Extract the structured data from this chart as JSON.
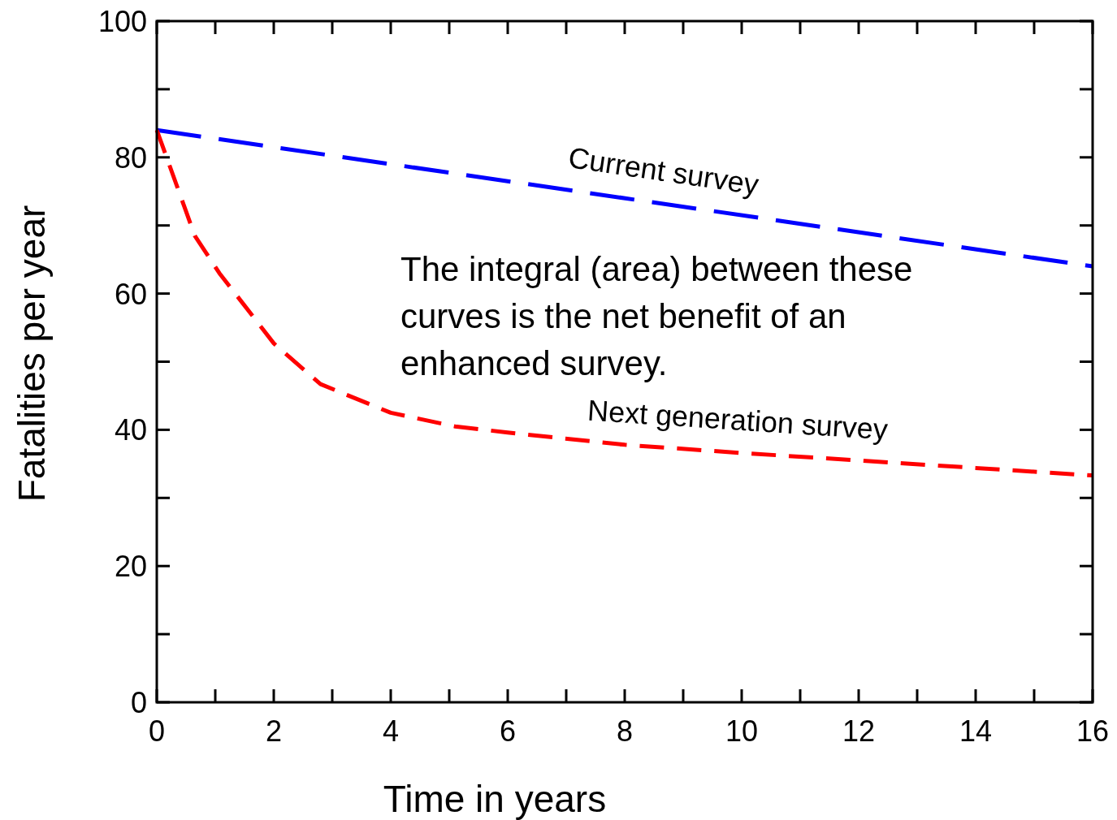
{
  "chart_data": {
    "type": "line",
    "xlabel": "Time in years",
    "ylabel": "Fatalities per year",
    "xlim": [
      0,
      16
    ],
    "ylim": [
      0,
      100
    ],
    "xticks": [
      0,
      {
        "value": 1,
        "label": null
      },
      2,
      {
        "value": 3,
        "label": null
      },
      4,
      {
        "value": 5,
        "label": null
      },
      6,
      {
        "value": 7,
        "label": null
      },
      8,
      {
        "value": 9,
        "label": null
      },
      10,
      {
        "value": 11,
        "label": null
      },
      12,
      {
        "value": 13,
        "label": null
      },
      14,
      {
        "value": 15,
        "label": null
      },
      16
    ],
    "yticks": [
      0,
      {
        "value": 10,
        "label": null
      },
      20,
      {
        "value": 30,
        "label": null
      },
      40,
      {
        "value": 50,
        "label": null
      },
      60,
      {
        "value": 70,
        "label": null
      },
      80,
      {
        "value": 90,
        "label": null
      },
      100
    ],
    "grid": false,
    "marker": "none",
    "series": [
      {
        "name": "Current survey",
        "color": "#0000ff",
        "line_style": "dashed",
        "x": [
          0,
          16
        ],
        "values": [
          84,
          64
        ]
      },
      {
        "name": "Next generation survey",
        "color": "#ff0000",
        "line_style": "dashed",
        "x": [
          0,
          0.65,
          1.07,
          2,
          2.8,
          4,
          5.1,
          6,
          8,
          10,
          12,
          14,
          16
        ],
        "values": [
          84,
          68.5,
          63,
          52.7,
          46.7,
          42.5,
          40.5,
          39.6,
          37.8,
          36.6,
          35.5,
          34.4,
          33.3
        ]
      }
    ],
    "annotations": [
      "The integral (area) between these curves is the net benefit of an enhanced survey."
    ]
  }
}
